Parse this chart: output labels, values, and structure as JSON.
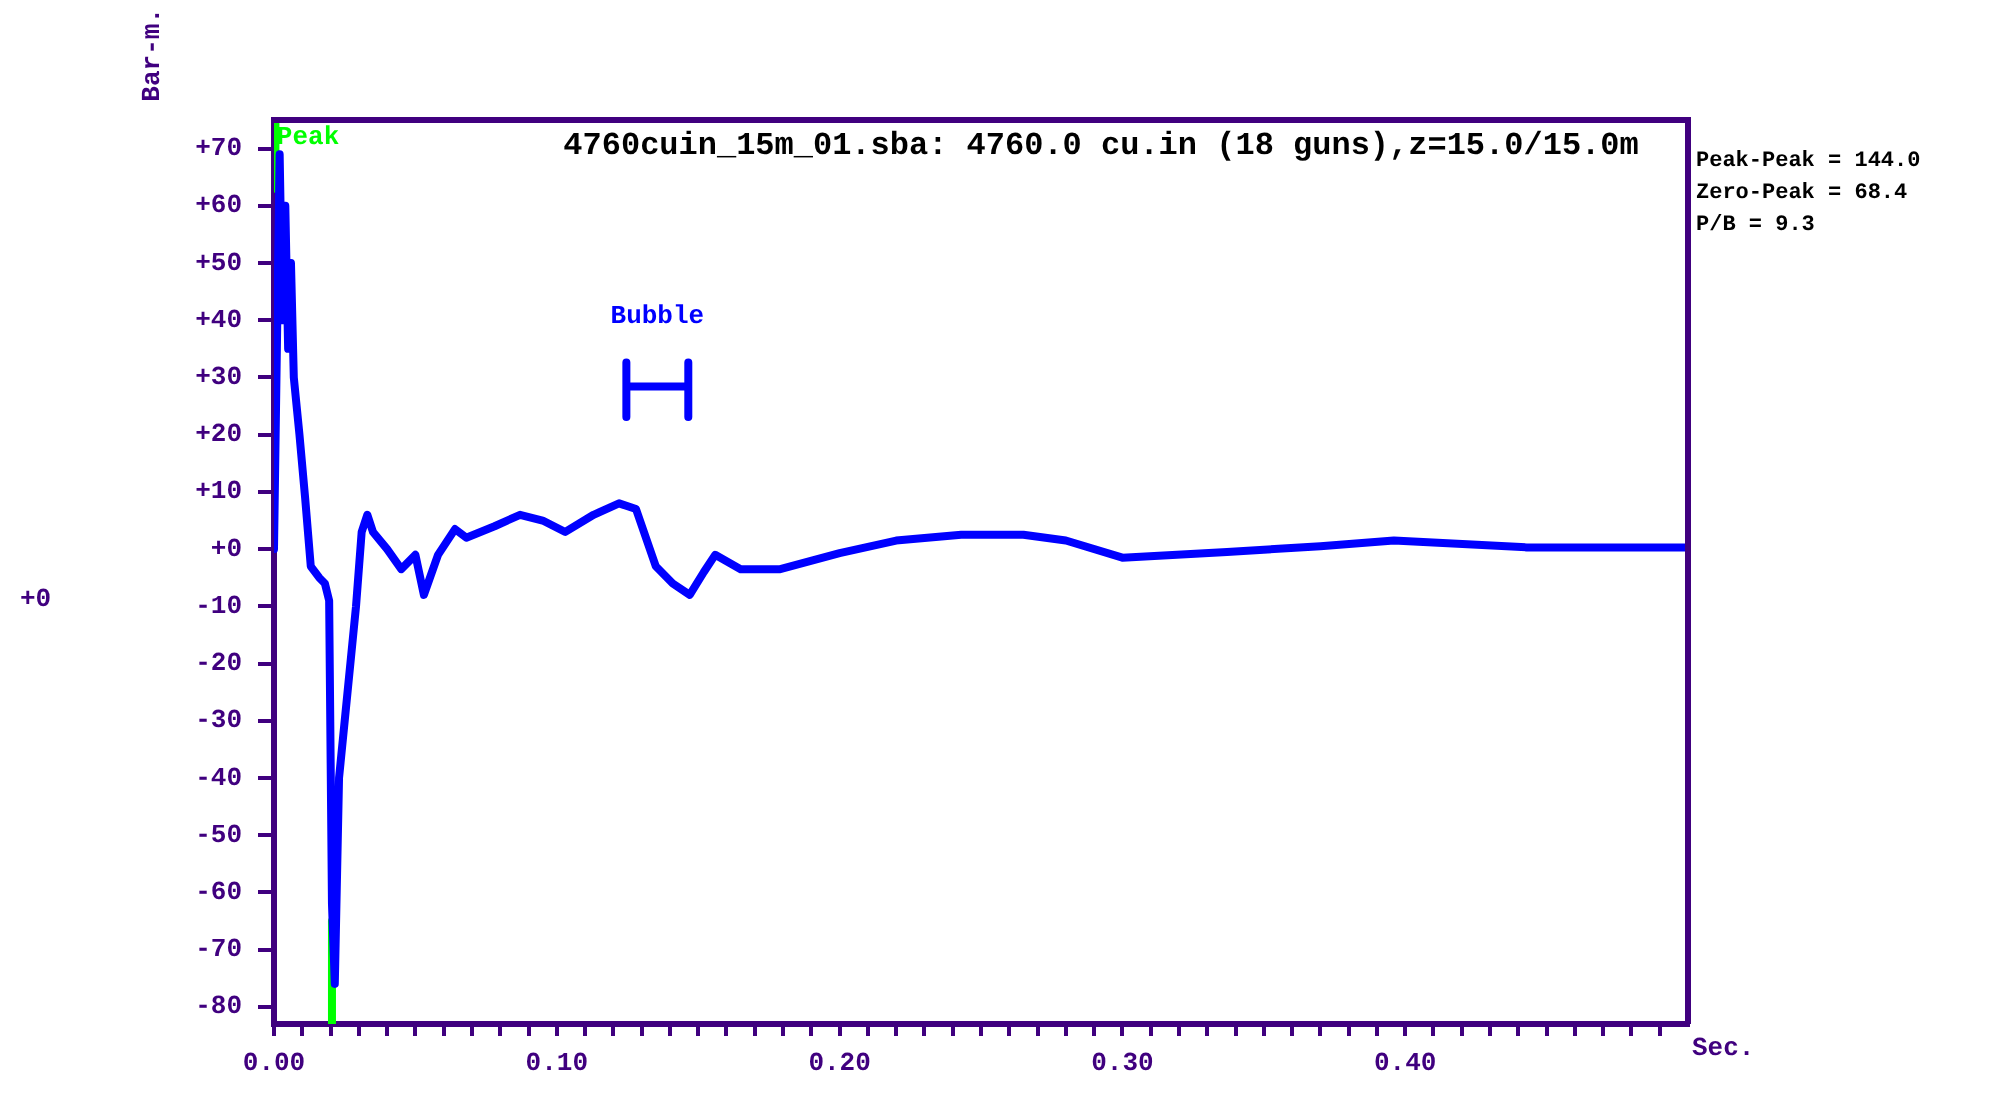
{
  "chart_data": {
    "type": "line",
    "title": "4760cuin_15m_01.sba: 4760.0 cu.in (18 guns),z=15.0/15.0m",
    "xlabel": "Sec.",
    "ylabel": "Bar-m.",
    "series": [
      {
        "color": "#0000ff",
        "x": [
          0,
          0.002,
          0.003,
          0.004,
          0.005,
          0.006,
          0.007,
          0.008,
          0.009,
          0.011,
          0.013,
          0.016,
          0.018,
          0.0195,
          0.0205,
          0.0215,
          0.023,
          0.025,
          0.027,
          0.029,
          0.031,
          0.033,
          0.035,
          0.04,
          0.045,
          0.05,
          0.053,
          0.058,
          0.064,
          0.068,
          0.078,
          0.087,
          0.095,
          0.103,
          0.113,
          0.122,
          0.128,
          0.135,
          0.141,
          0.147,
          0.152,
          0.156,
          0.165,
          0.179,
          0.2,
          0.22,
          0.243,
          0.265,
          0.28,
          0.3,
          0.337,
          0.37,
          0.396,
          0.443,
          0.499
        ],
        "values": [
          0,
          69,
          40,
          60,
          35,
          50,
          30,
          25,
          20,
          9,
          -3,
          -5,
          -6,
          -9,
          -62,
          -76,
          -40,
          -30,
          -20,
          -10,
          3,
          6,
          3,
          0,
          -3.5,
          -1,
          -8,
          -1,
          3.5,
          2,
          4,
          6,
          5,
          3,
          6,
          8,
          7,
          -3,
          -6,
          -8,
          -4,
          -1,
          -3.5,
          -3.5,
          -0.7,
          1.5,
          2.5,
          2.5,
          1.5,
          -1.5,
          -0.5,
          0.5,
          1.5,
          0.3,
          0.3
        ]
      },
      {
        "color": "#00ff00",
        "x": [
          0.0005,
          0.0005,
          0.01,
          0.0205,
          0.0205
        ],
        "values": [
          75,
          63,
          null,
          -65,
          -83
        ]
      },
      {
        "color": "#0000ff",
        "x": [
          0.1246,
          0.1246,
          0.1246,
          0.1465,
          0.1465,
          0.1465
        ],
        "values": [
          32.6,
          23.1,
          28.4,
          28.4,
          32.6,
          23.1
        ]
      }
    ],
    "xlim": [
      0,
      0.5
    ],
    "ylim": [
      -83,
      75
    ],
    "xticks": [
      {
        "value": 0,
        "label": "0.00"
      },
      {
        "value": 0.01,
        "label": null
      },
      {
        "value": 0.02,
        "label": null
      },
      {
        "value": 0.03,
        "label": null
      },
      {
        "value": 0.04,
        "label": null
      },
      {
        "value": 0.05,
        "label": null
      },
      {
        "value": 0.06,
        "label": null
      },
      {
        "value": 0.07,
        "label": null
      },
      {
        "value": 0.08,
        "label": null
      },
      {
        "value": 0.09,
        "label": null
      },
      {
        "value": 0.1,
        "label": "0.10"
      },
      {
        "value": 0.11,
        "label": null
      },
      {
        "value": 0.12,
        "label": null
      },
      {
        "value": 0.13,
        "label": null
      },
      {
        "value": 0.14,
        "label": null
      },
      {
        "value": 0.15,
        "label": null
      },
      {
        "value": 0.16,
        "label": null
      },
      {
        "value": 0.17,
        "label": null
      },
      {
        "value": 0.18,
        "label": null
      },
      {
        "value": 0.19,
        "label": null
      },
      {
        "value": 0.2,
        "label": "0.20"
      },
      {
        "value": 0.21,
        "label": null
      },
      {
        "value": 0.22,
        "label": null
      },
      {
        "value": 0.23,
        "label": null
      },
      {
        "value": 0.24,
        "label": null
      },
      {
        "value": 0.25,
        "label": null
      },
      {
        "value": 0.26,
        "label": null
      },
      {
        "value": 0.27,
        "label": null
      },
      {
        "value": 0.28,
        "label": null
      },
      {
        "value": 0.29,
        "label": null
      },
      {
        "value": 0.3,
        "label": "0.30"
      },
      {
        "value": 0.31,
        "label": null
      },
      {
        "value": 0.32,
        "label": null
      },
      {
        "value": 0.33,
        "label": null
      },
      {
        "value": 0.34,
        "label": null
      },
      {
        "value": 0.35,
        "label": null
      },
      {
        "value": 0.36,
        "label": null
      },
      {
        "value": 0.37,
        "label": null
      },
      {
        "value": 0.38,
        "label": null
      },
      {
        "value": 0.39,
        "label": null
      },
      {
        "value": 0.4,
        "label": "0.40"
      },
      {
        "value": 0.41,
        "label": null
      },
      {
        "value": 0.42,
        "label": null
      },
      {
        "value": 0.43,
        "label": null
      },
      {
        "value": 0.44,
        "label": null
      },
      {
        "value": 0.45,
        "label": null
      },
      {
        "value": 0.46,
        "label": null
      },
      {
        "value": 0.47,
        "label": null
      },
      {
        "value": 0.48,
        "label": null
      },
      {
        "value": 0.49,
        "label": null
      }
    ],
    "yticks": [
      {
        "value": -80,
        "label": "-80"
      },
      {
        "value": -70,
        "label": "-70"
      },
      {
        "value": -60,
        "label": "-60"
      },
      {
        "value": -50,
        "label": "-50"
      },
      {
        "value": -40,
        "label": "-40"
      },
      {
        "value": -30,
        "label": "-30"
      },
      {
        "value": -20,
        "label": "-20"
      },
      {
        "value": -10,
        "label": "-10"
      },
      {
        "value": 0,
        "label": "+0"
      },
      {
        "value": 10,
        "label": "+10"
      },
      {
        "value": 20,
        "label": "+20"
      },
      {
        "value": 30,
        "label": "+30"
      },
      {
        "value": 40,
        "label": "+40"
      },
      {
        "value": 50,
        "label": "+50"
      },
      {
        "value": 60,
        "label": "+60"
      },
      {
        "value": 70,
        "label": "+70"
      }
    ],
    "annotations": [
      {
        "text": "Peak",
        "x": 0.001,
        "y": 72
      },
      "Bubble",
      "Peak-Peak = 144.0",
      "Zero-Peak = 68.4",
      "P/B = 9.3",
      "+0"
    ],
    "grid": false,
    "legend": false,
    "marker": "none",
    "line_style": "solid"
  }
}
